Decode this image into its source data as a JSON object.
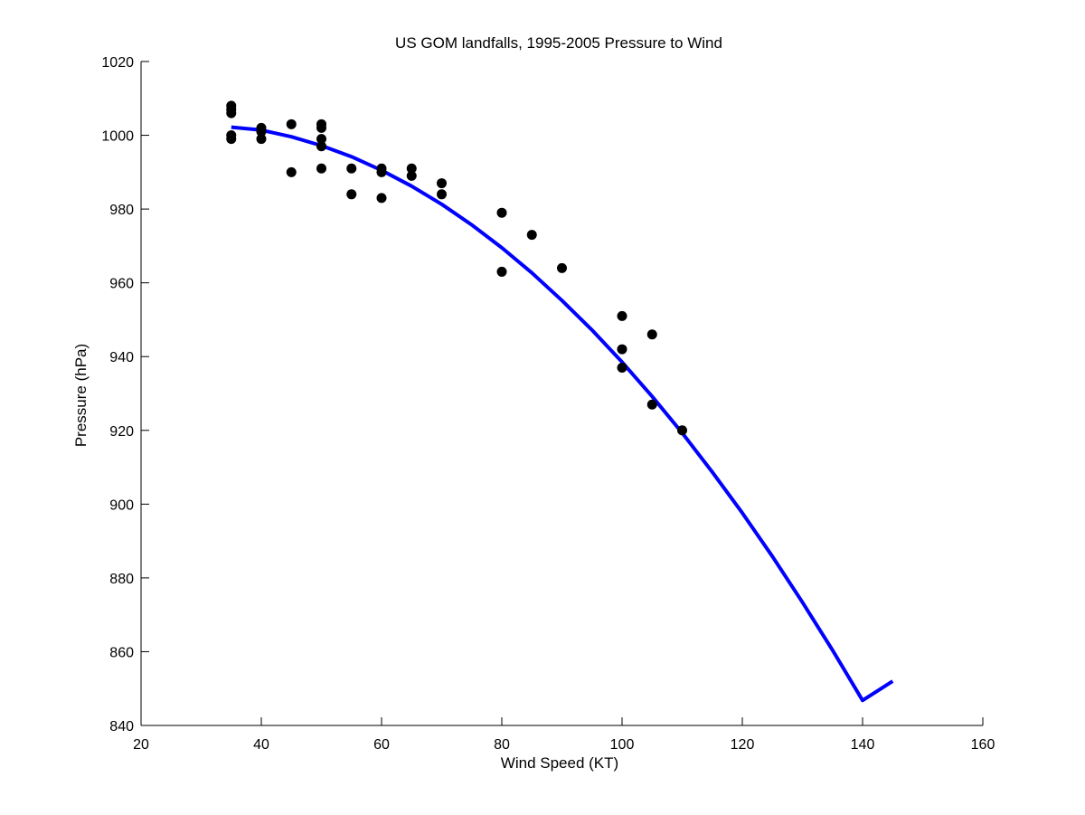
{
  "chart_data": {
    "type": "scatter",
    "title": "US GOM landfalls, 1995-2005 Pressure to Wind",
    "xlabel": "Wind Speed (KT)",
    "ylabel": "Pressure (hPa)",
    "xlim": [
      20,
      160
    ],
    "ylim": [
      840,
      1020
    ],
    "x_ticks": [
      20,
      40,
      60,
      80,
      100,
      120,
      140,
      160
    ],
    "y_ticks": [
      840,
      860,
      880,
      900,
      920,
      940,
      960,
      980,
      1000,
      1020
    ],
    "grid": false,
    "legend": "none",
    "series": [
      {
        "kind": "scatter",
        "color": "#000000",
        "marker": "filled-circle",
        "points": [
          {
            "x": 35,
            "y": 1008
          },
          {
            "x": 35,
            "y": 1007
          },
          {
            "x": 35,
            "y": 1006
          },
          {
            "x": 35,
            "y": 1000
          },
          {
            "x": 35,
            "y": 999
          },
          {
            "x": 40,
            "y": 1002
          },
          {
            "x": 40,
            "y": 1001
          },
          {
            "x": 40,
            "y": 999
          },
          {
            "x": 45,
            "y": 1003
          },
          {
            "x": 45,
            "y": 990
          },
          {
            "x": 50,
            "y": 1003
          },
          {
            "x": 50,
            "y": 1002
          },
          {
            "x": 50,
            "y": 999
          },
          {
            "x": 50,
            "y": 997
          },
          {
            "x": 50,
            "y": 991
          },
          {
            "x": 55,
            "y": 991
          },
          {
            "x": 55,
            "y": 984
          },
          {
            "x": 60,
            "y": 991
          },
          {
            "x": 60,
            "y": 990
          },
          {
            "x": 60,
            "y": 983
          },
          {
            "x": 65,
            "y": 991
          },
          {
            "x": 65,
            "y": 989
          },
          {
            "x": 70,
            "y": 987
          },
          {
            "x": 70,
            "y": 984
          },
          {
            "x": 80,
            "y": 979
          },
          {
            "x": 80,
            "y": 963
          },
          {
            "x": 85,
            "y": 973
          },
          {
            "x": 90,
            "y": 964
          },
          {
            "x": 100,
            "y": 951
          },
          {
            "x": 100,
            "y": 942
          },
          {
            "x": 100,
            "y": 937
          },
          {
            "x": 105,
            "y": 946
          },
          {
            "x": 105,
            "y": 927
          },
          {
            "x": 110,
            "y": 920
          }
        ]
      },
      {
        "kind": "line",
        "color": "#0000ff",
        "description_of_curve": "quadratic fit",
        "points": [
          {
            "x": 35,
            "y": 1002.2
          },
          {
            "x": 40,
            "y": 1001.4
          },
          {
            "x": 45,
            "y": 999.6
          },
          {
            "x": 50,
            "y": 997.2
          },
          {
            "x": 55,
            "y": 994.2
          },
          {
            "x": 60,
            "y": 990.5
          },
          {
            "x": 65,
            "y": 986.2
          },
          {
            "x": 70,
            "y": 981.3
          },
          {
            "x": 75,
            "y": 975.7
          },
          {
            "x": 80,
            "y": 969.5
          },
          {
            "x": 85,
            "y": 962.7
          },
          {
            "x": 90,
            "y": 955.2
          },
          {
            "x": 95,
            "y": 947.2
          },
          {
            "x": 100,
            "y": 938.5
          },
          {
            "x": 105,
            "y": 929.2
          },
          {
            "x": 110,
            "y": 919.3
          },
          {
            "x": 115,
            "y": 908.7
          },
          {
            "x": 120,
            "y": 897.6
          },
          {
            "x": 125,
            "y": 885.8
          },
          {
            "x": 130,
            "y": 873.4
          },
          {
            "x": 135,
            "y": 860.4
          },
          {
            "x": 140,
            "y": 846.8
          },
          {
            "x": 145,
            "y": 852.0
          }
        ]
      }
    ]
  }
}
